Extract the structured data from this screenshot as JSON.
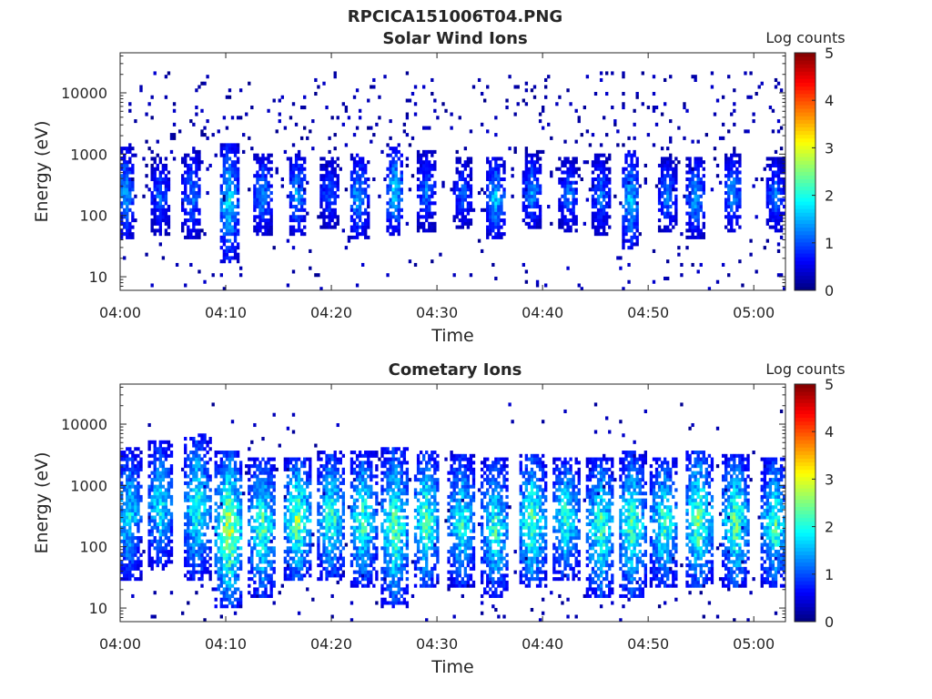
{
  "figure": {
    "title": "RPCICA151006T04.PNG"
  },
  "chart_data": [
    {
      "type": "heatmap",
      "title": "Solar Wind Ions",
      "xlabel": "Time",
      "ylabel": "Energy (eV)",
      "x_ticks": [
        "04:00",
        "04:10",
        "04:20",
        "04:30",
        "04:40",
        "04:50",
        "05:00"
      ],
      "x_range_minutes": [
        0,
        63
      ],
      "y_scale": "log",
      "y_ticks": [
        "10",
        "100",
        "1000",
        "10000"
      ],
      "y_range": [
        6,
        45000
      ],
      "colorbar": {
        "label": "Log counts",
        "range": [
          0,
          5
        ],
        "ticks": [
          "0",
          "1",
          "2",
          "3",
          "4",
          "5"
        ]
      },
      "colormap": "jet",
      "bursts": [
        {
          "t": 0.5,
          "e_lo": 60,
          "e_hi": 900,
          "peak": 1.6
        },
        {
          "t": 3.8,
          "e_lo": 70,
          "e_hi": 600,
          "peak": 1.2
        },
        {
          "t": 6.8,
          "e_lo": 60,
          "e_hi": 800,
          "peak": 1.4
        },
        {
          "t": 10.3,
          "e_lo": 25,
          "e_hi": 1100,
          "peak": 2.0
        },
        {
          "t": 13.5,
          "e_lo": 70,
          "e_hi": 700,
          "peak": 1.5
        },
        {
          "t": 16.8,
          "e_lo": 70,
          "e_hi": 700,
          "peak": 1.6
        },
        {
          "t": 19.8,
          "e_lo": 90,
          "e_hi": 600,
          "peak": 1.2
        },
        {
          "t": 22.6,
          "e_lo": 60,
          "e_hi": 700,
          "peak": 1.7
        },
        {
          "t": 26.0,
          "e_lo": 70,
          "e_hi": 900,
          "peak": 1.9
        },
        {
          "t": 29.0,
          "e_lo": 80,
          "e_hi": 800,
          "peak": 1.3
        },
        {
          "t": 32.5,
          "e_lo": 90,
          "e_hi": 600,
          "peak": 1.2
        },
        {
          "t": 35.5,
          "e_lo": 60,
          "e_hi": 600,
          "peak": 1.8
        },
        {
          "t": 39.0,
          "e_lo": 90,
          "e_hi": 700,
          "peak": 1.5
        },
        {
          "t": 42.5,
          "e_lo": 80,
          "e_hi": 600,
          "peak": 1.3
        },
        {
          "t": 45.5,
          "e_lo": 70,
          "e_hi": 700,
          "peak": 1.3
        },
        {
          "t": 48.3,
          "e_lo": 40,
          "e_hi": 800,
          "peak": 1.8
        },
        {
          "t": 51.8,
          "e_lo": 80,
          "e_hi": 600,
          "peak": 1.4
        },
        {
          "t": 54.5,
          "e_lo": 60,
          "e_hi": 600,
          "peak": 1.6
        },
        {
          "t": 58.0,
          "e_lo": 80,
          "e_hi": 700,
          "peak": 1.5
        },
        {
          "t": 62.0,
          "e_lo": 80,
          "e_hi": 600,
          "peak": 1.3
        }
      ]
    },
    {
      "type": "heatmap",
      "title": "Cometary Ions",
      "xlabel": "Time",
      "ylabel": "Energy (eV)",
      "x_ticks": [
        "04:00",
        "04:10",
        "04:20",
        "04:30",
        "04:40",
        "04:50",
        "05:00"
      ],
      "x_range_minutes": [
        0,
        63
      ],
      "y_scale": "log",
      "y_ticks": [
        "10",
        "100",
        "1000",
        "10000"
      ],
      "y_range": [
        6,
        45000
      ],
      "colorbar": {
        "label": "Log counts",
        "range": [
          0,
          5
        ],
        "ticks": [
          "0",
          "1",
          "2",
          "3",
          "4",
          "5"
        ]
      },
      "colormap": "jet",
      "bursts": [
        {
          "t": 0.8,
          "e_lo": 40,
          "e_hi": 3000,
          "peak": 2.0
        },
        {
          "t": 3.8,
          "e_lo": 60,
          "e_hi": 4000,
          "peak": 2.0
        },
        {
          "t": 7.3,
          "e_lo": 40,
          "e_hi": 5000,
          "peak": 2.3
        },
        {
          "t": 10.3,
          "e_lo": 15,
          "e_hi": 2500,
          "peak": 3.0
        },
        {
          "t": 13.5,
          "e_lo": 20,
          "e_hi": 2000,
          "peak": 2.5
        },
        {
          "t": 16.8,
          "e_lo": 40,
          "e_hi": 2000,
          "peak": 2.8
        },
        {
          "t": 20.0,
          "e_lo": 40,
          "e_hi": 2500,
          "peak": 2.4
        },
        {
          "t": 23.0,
          "e_lo": 30,
          "e_hi": 2500,
          "peak": 2.4
        },
        {
          "t": 26.0,
          "e_lo": 15,
          "e_hi": 3000,
          "peak": 2.6
        },
        {
          "t": 29.0,
          "e_lo": 30,
          "e_hi": 2500,
          "peak": 2.5
        },
        {
          "t": 32.3,
          "e_lo": 30,
          "e_hi": 2200,
          "peak": 2.3
        },
        {
          "t": 35.5,
          "e_lo": 20,
          "e_hi": 2000,
          "peak": 2.3
        },
        {
          "t": 39.0,
          "e_lo": 30,
          "e_hi": 2200,
          "peak": 2.6
        },
        {
          "t": 42.2,
          "e_lo": 40,
          "e_hi": 2000,
          "peak": 2.3
        },
        {
          "t": 45.5,
          "e_lo": 20,
          "e_hi": 2000,
          "peak": 2.5
        },
        {
          "t": 48.5,
          "e_lo": 20,
          "e_hi": 2500,
          "peak": 2.5
        },
        {
          "t": 51.5,
          "e_lo": 30,
          "e_hi": 2000,
          "peak": 2.4
        },
        {
          "t": 54.8,
          "e_lo": 30,
          "e_hi": 2500,
          "peak": 2.7
        },
        {
          "t": 58.3,
          "e_lo": 30,
          "e_hi": 2200,
          "peak": 2.6
        },
        {
          "t": 62.0,
          "e_lo": 30,
          "e_hi": 2000,
          "peak": 2.4
        }
      ]
    }
  ]
}
